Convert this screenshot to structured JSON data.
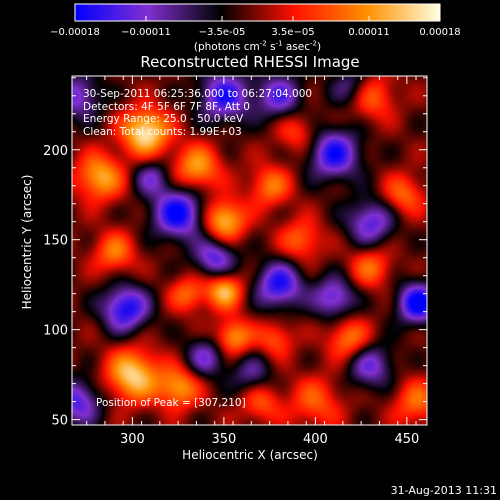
{
  "chart_data": {
    "type": "heatmap",
    "title": "Reconstructed RHESSI Image",
    "xlabel": "Heliocentric X (arcsec)",
    "ylabel": "Heliocentric Y (arcsec)",
    "xlim": [
      267,
      461
    ],
    "ylim": [
      47,
      241
    ],
    "x_ticks": [
      "300",
      "350",
      "400",
      "450"
    ],
    "y_ticks": [
      "50",
      "100",
      "150",
      "200"
    ],
    "colorbar": {
      "range": [
        -0.00018,
        0.00018
      ],
      "tick_labels": [
        "-0.00018",
        "-0.00011",
        "-3.5e-05",
        "3.5e-05",
        "0.00011",
        "0.00018"
      ],
      "label": "(photons cm  s  asec )",
      "label_superscripts": [
        "-2",
        "-1",
        "-2"
      ],
      "colormap": [
        "#0000ff",
        "#8030d0",
        "#000000",
        "#ff1000",
        "#ff9000",
        "#ffffe0"
      ]
    },
    "annotations": [
      "30-Sep-2011 06:25:36.000 to 06:27:04.000",
      "Detectors: 4F 5F 6F 7F 8F, Att 0",
      "Energy Range: 25.0 - 50.0 keV",
      "Clean: Total counts: 1.99E+03"
    ],
    "peak_label": "Position of Peak = [307,210]",
    "blobs": [
      {
        "x": 307,
        "y": 210,
        "v": 1.0,
        "s": 9
      },
      {
        "x": 350,
        "y": 161,
        "v": 0.85,
        "s": 8
      },
      {
        "x": 300,
        "y": 75,
        "v": 0.9,
        "s": 10
      },
      {
        "x": 325,
        "y": 68,
        "v": 0.7,
        "s": 8
      },
      {
        "x": 282,
        "y": 185,
        "v": 0.75,
        "s": 9
      },
      {
        "x": 290,
        "y": 143,
        "v": 0.55,
        "s": 8
      },
      {
        "x": 335,
        "y": 190,
        "v": 0.7,
        "s": 9
      },
      {
        "x": 350,
        "y": 122,
        "v": 0.8,
        "s": 7
      },
      {
        "x": 355,
        "y": 96,
        "v": 0.7,
        "s": 7
      },
      {
        "x": 330,
        "y": 120,
        "v": 0.5,
        "s": 7
      },
      {
        "x": 375,
        "y": 180,
        "v": 0.55,
        "s": 8
      },
      {
        "x": 418,
        "y": 95,
        "v": 0.6,
        "s": 8
      },
      {
        "x": 392,
        "y": 150,
        "v": 0.5,
        "s": 8
      },
      {
        "x": 430,
        "y": 230,
        "v": 0.55,
        "s": 9
      },
      {
        "x": 430,
        "y": 135,
        "v": 0.5,
        "s": 8
      },
      {
        "x": 400,
        "y": 60,
        "v": 0.45,
        "s": 10
      },
      {
        "x": 455,
        "y": 60,
        "v": 0.5,
        "s": 9
      },
      {
        "x": 448,
        "y": 175,
        "v": 0.5,
        "s": 8
      },
      {
        "x": 370,
        "y": 60,
        "v": 0.45,
        "s": 8
      },
      {
        "x": 390,
        "y": 210,
        "v": 0.4,
        "s": 8
      },
      {
        "x": 378,
        "y": 95,
        "v": 0.45,
        "s": 7
      },
      {
        "x": 350,
        "y": 230,
        "v": -0.8,
        "s": 10
      },
      {
        "x": 325,
        "y": 165,
        "v": -0.95,
        "s": 10
      },
      {
        "x": 296,
        "y": 112,
        "v": -0.9,
        "s": 9
      },
      {
        "x": 410,
        "y": 198,
        "v": -0.85,
        "s": 10
      },
      {
        "x": 380,
        "y": 125,
        "v": -0.85,
        "s": 9
      },
      {
        "x": 456,
        "y": 115,
        "v": -1.0,
        "s": 8
      },
      {
        "x": 430,
        "y": 160,
        "v": -0.7,
        "s": 9
      },
      {
        "x": 270,
        "y": 230,
        "v": -0.6,
        "s": 9
      },
      {
        "x": 270,
        "y": 60,
        "v": -0.7,
        "s": 9
      },
      {
        "x": 345,
        "y": 140,
        "v": -0.7,
        "s": 8
      },
      {
        "x": 410,
        "y": 118,
        "v": -0.7,
        "s": 8
      },
      {
        "x": 380,
        "y": 230,
        "v": -0.65,
        "s": 9
      },
      {
        "x": 430,
        "y": 80,
        "v": -0.6,
        "s": 9
      },
      {
        "x": 340,
        "y": 85,
        "v": -0.55,
        "s": 8
      },
      {
        "x": 310,
        "y": 185,
        "v": -0.5,
        "s": 7
      },
      {
        "x": 420,
        "y": 235,
        "v": -0.5,
        "s": 8
      },
      {
        "x": 365,
        "y": 75,
        "v": -0.45,
        "s": 8
      }
    ]
  },
  "footer": {
    "date": "31-Aug-2013 11:31"
  }
}
